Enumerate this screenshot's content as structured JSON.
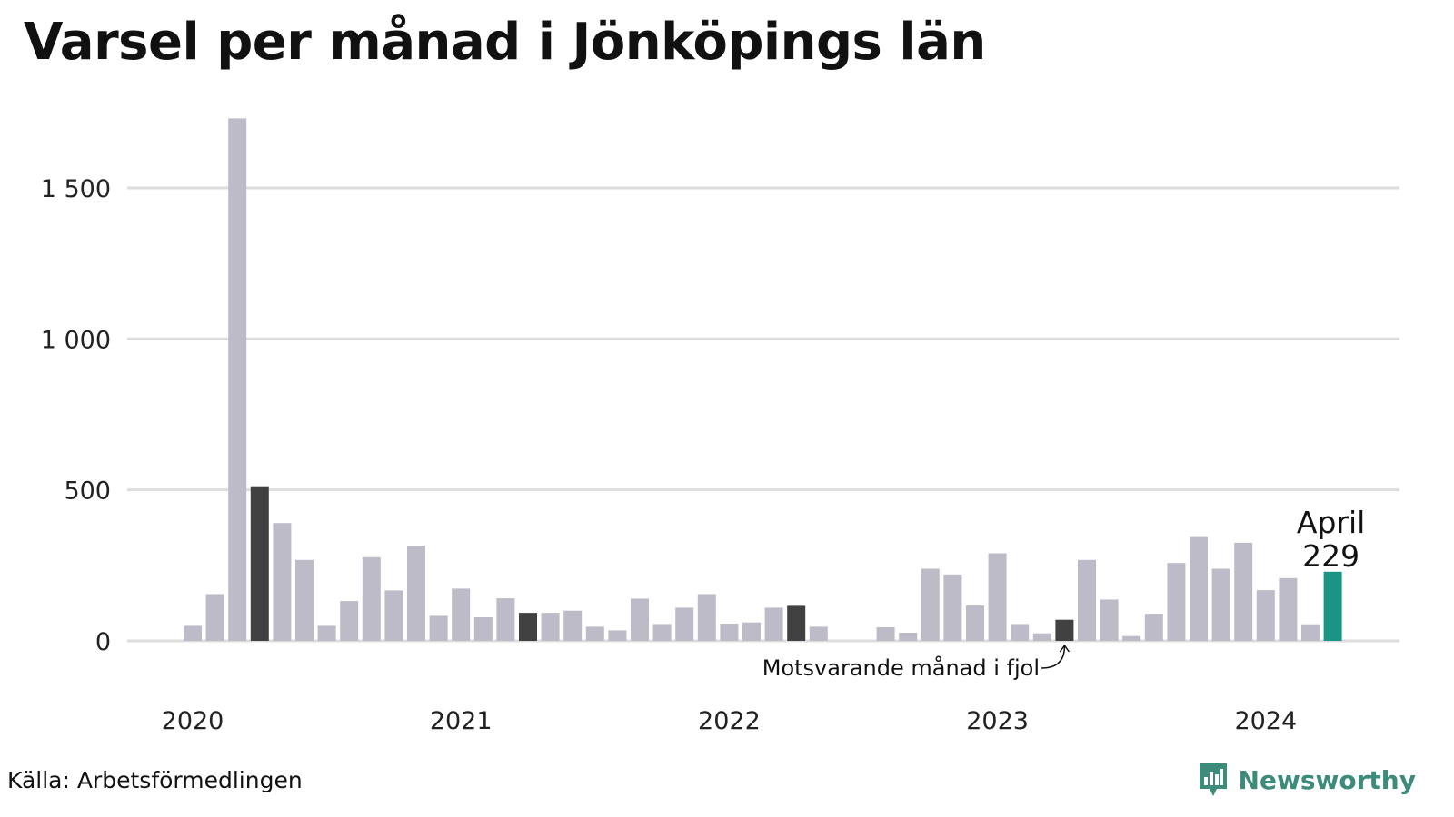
{
  "title": "Varsel per månad i Jönköpings län",
  "source": "Källa: Arbetsförmedlingen",
  "brand": {
    "name": "Newsworthy",
    "icon": "bar-chart-badge-icon",
    "color": "#3d8b7a"
  },
  "colors": {
    "bar": "#bdbbc8",
    "highlight": "#414141",
    "current": "#1a9485",
    "grid": "#dddddd"
  },
  "chart_data": {
    "type": "bar",
    "title": "Varsel per månad i Jönköpings län",
    "xlabel": "",
    "ylabel": "",
    "ylim": [
      0,
      1750
    ],
    "yticks": [
      0,
      500,
      1000,
      1500
    ],
    "ytick_labels": [
      "0",
      "500",
      "1 000",
      "1 500"
    ],
    "xtick_labels": [
      "2020",
      "2021",
      "2022",
      "2023",
      "2024"
    ],
    "grid": true,
    "values": [
      50,
      155,
      1730,
      512,
      390,
      268,
      50,
      132,
      277,
      167,
      315,
      83,
      173,
      78,
      141,
      93,
      93,
      100,
      47,
      35,
      140,
      56,
      110,
      155,
      57,
      61,
      110,
      116,
      47,
      0,
      0,
      45,
      27,
      239,
      220,
      117,
      290,
      56,
      25,
      70,
      268,
      137,
      16,
      90,
      258,
      344,
      239,
      325,
      168,
      208,
      55,
      229
    ],
    "highlight_indices": [
      3,
      15,
      27,
      39
    ],
    "current_index": 51,
    "annotations": {
      "current_month": "April",
      "current_value": "229",
      "comparison": "Motsvarande månad i fjol"
    }
  }
}
